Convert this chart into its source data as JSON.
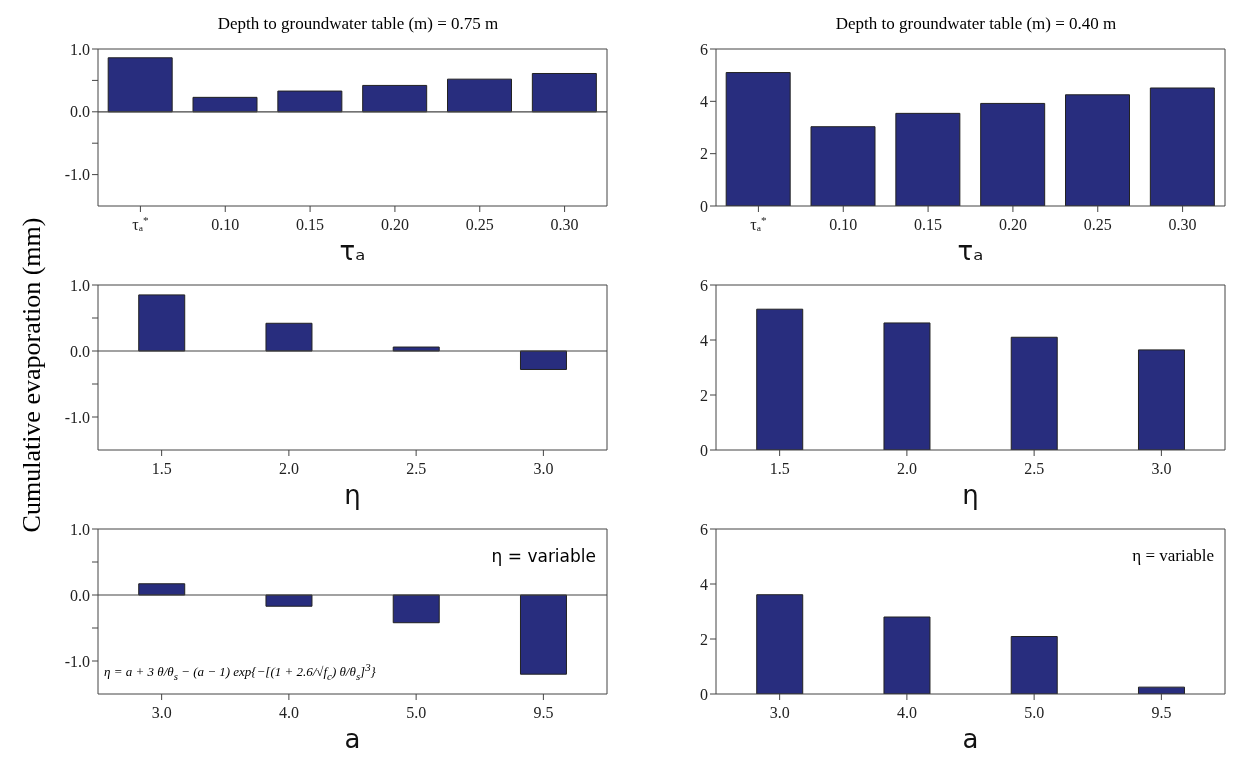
{
  "chart_data": [
    {
      "type": "bar",
      "title": "Depth to groundwater table (m) = 0.75 m",
      "xlabel": "τₐ",
      "categories": [
        "τₐ$^{*}$",
        "0.10",
        "0.15",
        "0.20",
        "0.25",
        "0.30"
      ],
      "values": [
        0.86,
        0.23,
        0.33,
        0.42,
        0.52,
        0.61
      ],
      "color": "#282d7e",
      "ylim": [
        -1.5,
        1.0
      ],
      "yticks": [
        {
          "value": -1,
          "label": "-1.0"
        },
        {
          "value": -0.5,
          "label": null
        },
        {
          "value": 0,
          "label": "0.0"
        },
        {
          "value": 0.5,
          "label": null
        },
        {
          "value": 1,
          "label": "1.0"
        }
      ],
      "ref_lines": [
        {
          "axis": "y",
          "value": 0,
          "label": null
        }
      ],
      "grid": false,
      "legend": false
    },
    {
      "type": "bar",
      "title": "Depth to groundwater table (m) = 0.40 m",
      "xlabel": "τₐ",
      "categories": [
        "τₐ$^{*}$",
        "0.10",
        "0.15",
        "0.20",
        "0.25",
        "0.30"
      ],
      "values": [
        5.1,
        3.03,
        3.54,
        3.92,
        4.25,
        4.51
      ],
      "color": "#282d7e",
      "ylim": [
        0,
        6
      ],
      "yticks": [
        0,
        2,
        4,
        6
      ],
      "grid": false,
      "legend": false
    },
    {
      "type": "bar",
      "xlabel": "η",
      "ylabel": "Cumulative evaporation (mm)",
      "categories": [
        "1.5",
        "2.0",
        "2.5",
        "3.0"
      ],
      "values": [
        0.85,
        0.42,
        0.06,
        -0.28
      ],
      "color": "#282d7e",
      "ylim": [
        -1.5,
        1.0
      ],
      "yticks": [
        {
          "value": -1,
          "label": "-1.0"
        },
        {
          "value": -0.5,
          "label": null
        },
        {
          "value": 0,
          "label": "0.0"
        },
        {
          "value": 0.5,
          "label": null
        },
        {
          "value": 1,
          "label": "1.0"
        }
      ],
      "ref_lines": [
        {
          "axis": "y",
          "value": 0,
          "label": null
        }
      ],
      "grid": false,
      "legend": false
    },
    {
      "type": "bar",
      "xlabel": "η",
      "categories": [
        "1.5",
        "2.0",
        "2.5",
        "3.0"
      ],
      "values": [
        5.12,
        4.62,
        4.1,
        3.64
      ],
      "color": "#282d7e",
      "ylim": [
        0,
        6
      ],
      "yticks": [
        0,
        2,
        4,
        6
      ],
      "grid": false,
      "legend": false
    },
    {
      "type": "bar",
      "xlabel": "a",
      "categories": [
        "3.0",
        "4.0",
        "5.0",
        "9.5"
      ],
      "values": [
        0.17,
        -0.17,
        -0.42,
        -1.2
      ],
      "color": "#282d7e",
      "ylim": [
        -1.5,
        1.0
      ],
      "yticks": [
        {
          "value": -1,
          "label": "-1.0"
        },
        {
          "value": -0.5,
          "label": null
        },
        {
          "value": 0,
          "label": "0.0"
        },
        {
          "value": 0.5,
          "label": null
        },
        {
          "value": 1,
          "label": "1.0"
        }
      ],
      "ref_lines": [
        {
          "axis": "y",
          "value": 0,
          "label": null
        }
      ],
      "annotations": [
        "η = variable",
        "η = a + 3 θ/θ$_{s}$ − (a − 1) exp{−[(1 + 2.6/√f$_{c}$) θ/θ$_{s}$]$^{3}$}"
      ],
      "grid": false,
      "legend": false
    },
    {
      "type": "bar",
      "xlabel": "a",
      "categories": [
        "3.0",
        "4.0",
        "5.0",
        "9.5"
      ],
      "values": [
        3.61,
        2.8,
        2.09,
        0.25
      ],
      "color": "#282d7e",
      "ylim": [
        0,
        6
      ],
      "yticks": [
        0,
        2,
        4,
        6
      ],
      "annotations": [
        "η = variable"
      ],
      "grid": false,
      "legend": false
    }
  ]
}
